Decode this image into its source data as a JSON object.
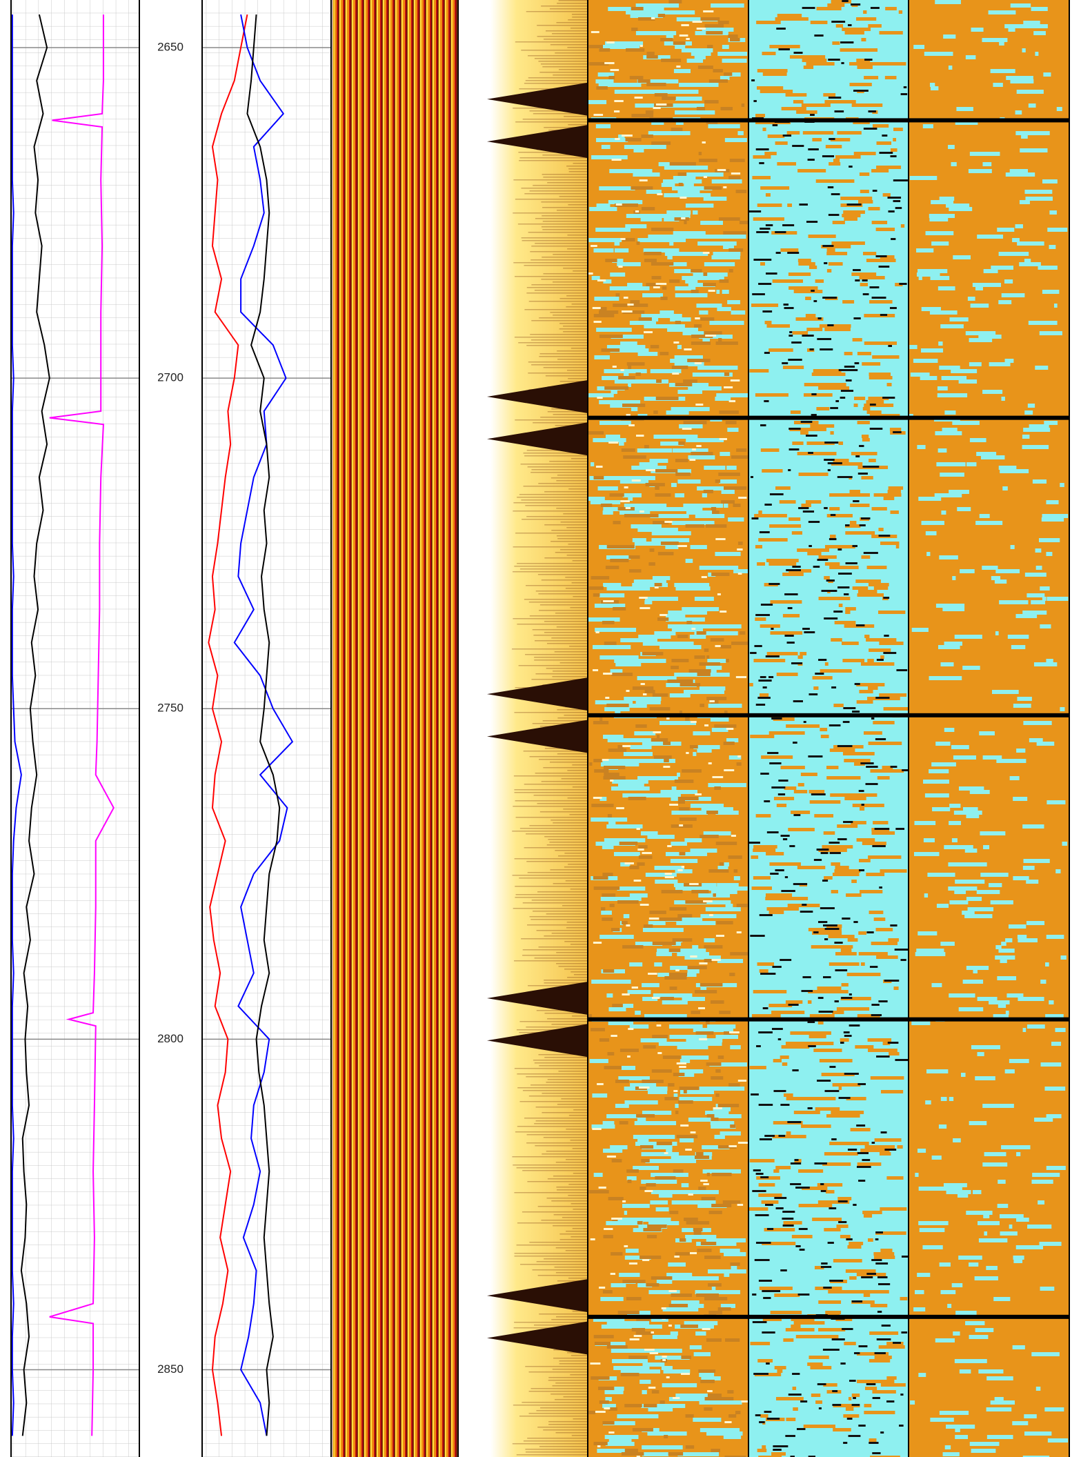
{
  "chart_data": {
    "type": "well-log",
    "ylim": [
      2642.8,
      2863.2
    ],
    "yticks": [
      2650,
      2700,
      2750,
      2800,
      2850
    ],
    "grid": true,
    "depth": [
      2645,
      2650,
      2655,
      2660,
      2665,
      2670,
      2675,
      2680,
      2685,
      2690,
      2695,
      2700,
      2705,
      2710,
      2715,
      2720,
      2725,
      2730,
      2735,
      2740,
      2745,
      2750,
      2755,
      2760,
      2765,
      2770,
      2775,
      2780,
      2785,
      2790,
      2795,
      2800,
      2805,
      2810,
      2815,
      2820,
      2825,
      2830,
      2835,
      2840,
      2845,
      2850,
      2855,
      2860
    ],
    "tracks": [
      {
        "xlim": [
          0,
          100
        ],
        "series": [
          {
            "color": "#000000",
            "values": [
              22,
              28,
              20,
              25,
              18,
              21,
              19,
              24,
              22,
              20,
              26,
              30,
              24,
              28,
              22,
              25,
              20,
              18,
              21,
              16,
              19,
              15,
              17,
              20,
              16,
              14,
              18,
              12,
              15,
              10,
              13,
              11,
              12,
              14,
              9,
              10,
              12,
              11,
              8,
              12,
              14,
              10,
              12,
              9
            ]
          },
          {
            "color": "#0000ff",
            "values": [
              1,
              1,
              1,
              1,
              1,
              1,
              2,
              1,
              1,
              1,
              1,
              2,
              1,
              1,
              1,
              1,
              1,
              2,
              1,
              1,
              1,
              2,
              3,
              8,
              4,
              2,
              1,
              1,
              1,
              2,
              1,
              1,
              1,
              1,
              2,
              1,
              1,
              1,
              1,
              2,
              1,
              1,
              2,
              1
            ]
          },
          {
            "color": "#ff00ff",
            "depth": [
              2645,
              2655,
              2660,
              2661,
              2662,
              2670,
              2680,
              2690,
              2700,
              2705,
              2706,
              2707,
              2715,
              2725,
              2735,
              2745,
              2755,
              2760,
              2765,
              2770,
              2780,
              2790,
              2796,
              2797,
              2798,
              2810,
              2820,
              2830,
              2840,
              2842,
              2843,
              2850,
              2860
            ],
            "values": [
              72,
              72,
              71,
              32,
              71,
              70,
              71,
              70,
              70,
              70,
              30,
              72,
              70,
              69,
              69,
              68,
              67,
              66,
              80,
              66,
              66,
              65,
              64,
              45,
              66,
              65,
              64,
              65,
              64,
              30,
              64,
              64,
              63
            ]
          }
        ]
      },
      {
        "xlim": [
          0,
          100
        ],
        "series": [
          {
            "color": "#ff0000",
            "values": [
              35,
              30,
              25,
              15,
              8,
              12,
              10,
              8,
              15,
              10,
              28,
              25,
              20,
              22,
              18,
              15,
              12,
              8,
              10,
              5,
              12,
              8,
              15,
              10,
              8,
              18,
              12,
              6,
              9,
              14,
              10,
              20,
              18,
              12,
              15,
              22,
              18,
              14,
              20,
              16,
              10,
              8,
              12,
              15
            ]
          },
          {
            "color": "#0000ff",
            "values": [
              30,
              35,
              45,
              63,
              40,
              45,
              48,
              40,
              30,
              30,
              55,
              65,
              48,
              50,
              40,
              35,
              30,
              28,
              40,
              25,
              45,
              55,
              70,
              45,
              66,
              60,
              40,
              30,
              35,
              40,
              28,
              52,
              48,
              40,
              38,
              45,
              40,
              32,
              42,
              40,
              36,
              30,
              45,
              50
            ]
          },
          {
            "color": "#000000",
            "values": [
              42,
              40,
              38,
              35,
              45,
              50,
              52,
              50,
              48,
              45,
              38,
              48,
              45,
              50,
              52,
              48,
              50,
              46,
              48,
              52,
              50,
              48,
              45,
              55,
              60,
              58,
              52,
              50,
              48,
              52,
              46,
              42,
              44,
              48,
              50,
              52,
              50,
              48,
              50,
              52,
              55,
              50,
              52,
              50
            ]
          }
        ]
      }
    ],
    "events": [
      2661,
      2706,
      2751,
      2797,
      2842
    ]
  }
}
